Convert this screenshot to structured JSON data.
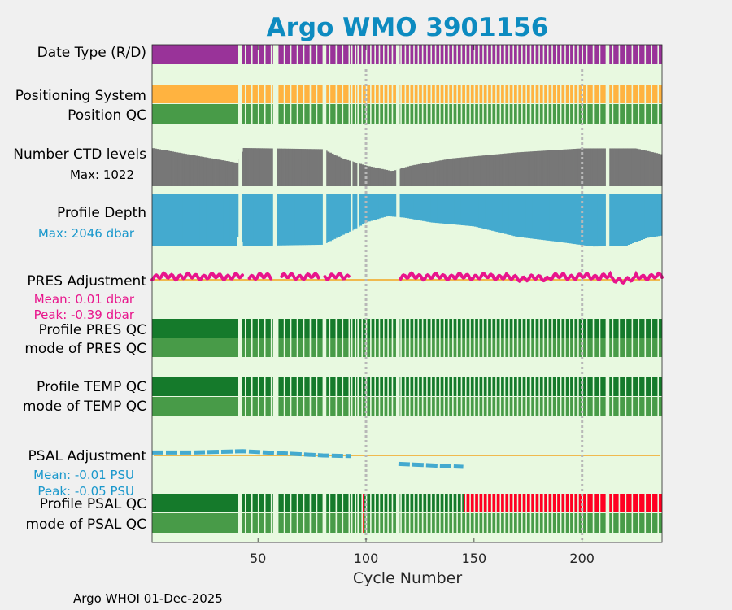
{
  "chart_data": {
    "type": "table",
    "title": "Argo WMO 3901156",
    "xlabel": "Cycle Number",
    "xlim": [
      1,
      237
    ],
    "xticks": [
      50,
      100,
      150,
      200
    ],
    "xtick_labels": [
      "50",
      "100",
      "150",
      "200"
    ],
    "vertical_reference_lines": [
      100,
      200
    ],
    "footer": "Argo WHOI 01-Dec-2025",
    "missing_cycle_ranges": [
      [
        41,
        42
      ],
      [
        57,
        58
      ],
      [
        80,
        81
      ],
      [
        93,
        93
      ],
      [
        96,
        96
      ],
      [
        114,
        115
      ],
      [
        211,
        212
      ]
    ],
    "rows": [
      {
        "label": "Date Type (R/D)",
        "color": "#993399"
      },
      {
        "label": "Positioning System",
        "color": "#ffb340"
      },
      {
        "label": "Position QC",
        "color": "#489b48"
      },
      {
        "label": "Number CTD levels",
        "sub": "Max: 1022",
        "color": "#777777",
        "max": 1022,
        "profile_fraction": [
          [
            1,
            0.96
          ],
          [
            41,
            0.58
          ],
          [
            43,
            0.96
          ],
          [
            80,
            0.93
          ],
          [
            90,
            0.68
          ],
          [
            100,
            0.52
          ],
          [
            112,
            0.38
          ],
          [
            121,
            0.52
          ],
          [
            140,
            0.7
          ],
          [
            170,
            0.85
          ],
          [
            200,
            0.95
          ],
          [
            225,
            0.95
          ],
          [
            237,
            0.8
          ]
        ]
      },
      {
        "label": "Profile Depth",
        "sub": "Max: 2046 dbar",
        "color": "#44aacf",
        "max": 2046,
        "max_dbar": [
          [
            1,
            2000
          ],
          [
            40,
            2000
          ],
          [
            41,
            1310
          ],
          [
            43,
            2000
          ],
          [
            80,
            1950
          ],
          [
            95,
            1350
          ],
          [
            100,
            1100
          ],
          [
            110,
            860
          ],
          [
            118,
            920
          ],
          [
            130,
            1100
          ],
          [
            150,
            1250
          ],
          [
            170,
            1650
          ],
          [
            190,
            1850
          ],
          [
            205,
            2020
          ],
          [
            220,
            2000
          ],
          [
            230,
            1690
          ],
          [
            237,
            1600
          ]
        ]
      },
      {
        "label": "PRES Adjustment",
        "sub": "Mean: 0.01 dbar",
        "sub2": "Peak: -0.39 dbar",
        "color": "#e8158c",
        "mean": 0.01,
        "peak": -0.39,
        "unit": "dbar",
        "segments": [
          [
            1,
            43
          ],
          [
            46,
            56
          ],
          [
            61,
            78
          ],
          [
            81,
            92
          ],
          [
            116,
            237
          ]
        ]
      },
      {
        "label": "Profile PRES QC",
        "color": "#157a2b"
      },
      {
        "label": "mode of PRES QC",
        "color": "#489b48"
      },
      {
        "label": "Profile TEMP QC",
        "color": "#157a2b"
      },
      {
        "label": "mode of TEMP QC",
        "color": "#489b48"
      },
      {
        "label": "PSAL Adjustment",
        "sub": "Mean: -0.01 PSU",
        "sub2": "Peak: -0.05 PSU",
        "color": "#44aacf",
        "mean": -0.01,
        "peak": -0.05,
        "unit": "PSU",
        "points": [
          [
            1,
            -0.001
          ],
          [
            19,
            -0.001
          ],
          [
            43,
            0.003
          ],
          [
            80,
            -0.01
          ],
          [
            93,
            -0.012
          ],
          [
            115,
            -0.036
          ],
          [
            145,
            -0.045
          ]
        ]
      },
      {
        "label": "Profile PSAL QC",
        "color": "#157a2b",
        "bad_color": "#ff0022",
        "bad_from_cycle": 146,
        "flagged_cycles": [
          [
            80,
            "#ff9900"
          ],
          [
            98,
            "#ff0022"
          ]
        ]
      },
      {
        "label": "mode of PSAL QC",
        "color": "#489b48",
        "flagged_cycles": [
          [
            80,
            "#ee3322"
          ],
          [
            98,
            "#ee3322"
          ]
        ]
      }
    ]
  }
}
